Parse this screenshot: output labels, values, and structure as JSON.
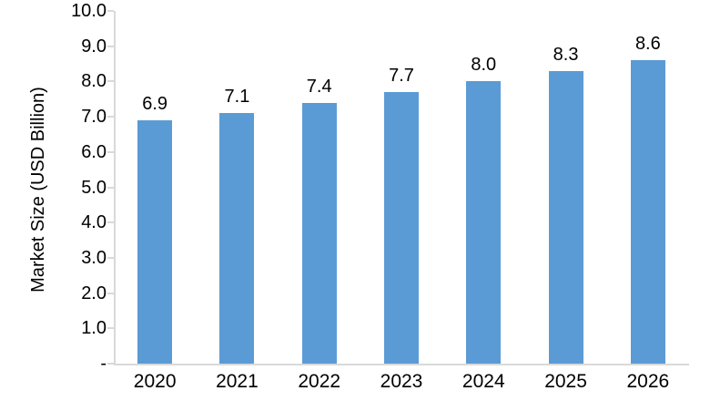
{
  "chart_data": {
    "type": "bar",
    "title": "",
    "categories": [
      "2020",
      "2021",
      "2022",
      "2023",
      "2024",
      "2025",
      "2026"
    ],
    "values": [
      6.9,
      7.1,
      7.4,
      7.7,
      8.0,
      8.3,
      8.6
    ],
    "data_labels": [
      "6.9",
      "7.1",
      "7.4",
      "7.7",
      "8.0",
      "8.3",
      "8.6"
    ],
    "xlabel": "",
    "ylabel": "Market Size (USD Billion)",
    "ylim": [
      0,
      10
    ],
    "yticks": [
      {
        "value": 10,
        "label": "10.0"
      },
      {
        "value": 9,
        "label": "9.0"
      },
      {
        "value": 8,
        "label": "8.0"
      },
      {
        "value": 7,
        "label": "7.0"
      },
      {
        "value": 6,
        "label": "6.0"
      },
      {
        "value": 5,
        "label": "5.0"
      },
      {
        "value": 4,
        "label": "4.0"
      },
      {
        "value": 3,
        "label": "3.0"
      },
      {
        "value": 2,
        "label": "2.0"
      },
      {
        "value": 1,
        "label": "1.0"
      },
      {
        "value": 0,
        "label": "-"
      }
    ],
    "grid": false,
    "legend": "none",
    "colors": {
      "bar": "#5B9BD5",
      "axis_line": "#D9D9D9",
      "text": "#000000",
      "background": "#FFFFFF"
    }
  }
}
